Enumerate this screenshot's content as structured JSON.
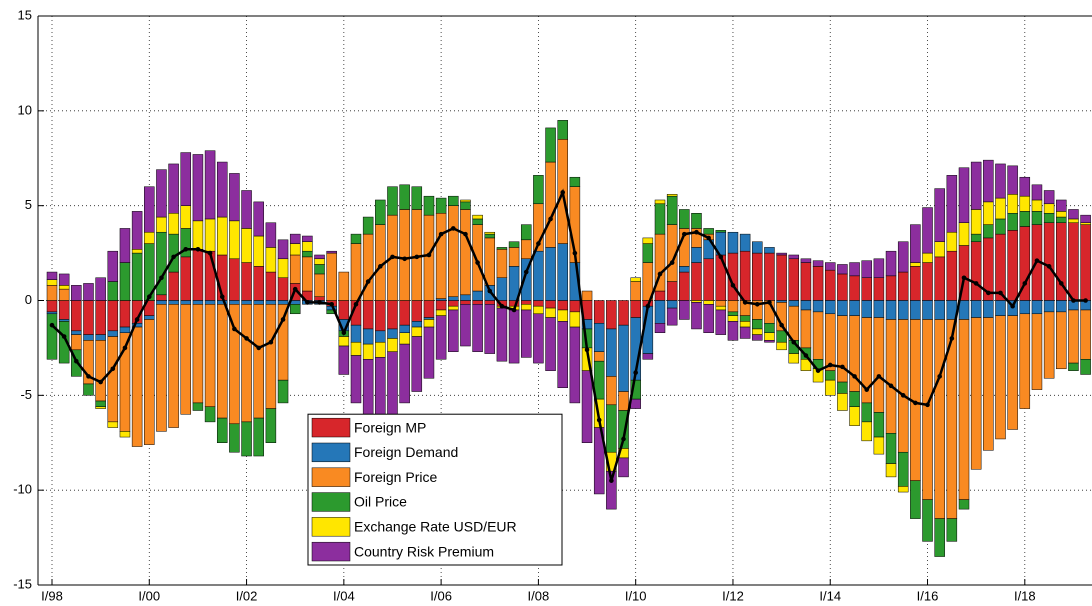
{
  "chart_data": {
    "type": "bar",
    "stacked": true,
    "categories": [
      "I/98",
      null,
      null,
      null,
      null,
      null,
      null,
      null,
      "I/00",
      null,
      null,
      null,
      null,
      null,
      null,
      null,
      "I/02",
      null,
      null,
      null,
      null,
      null,
      null,
      null,
      "I/04",
      null,
      null,
      null,
      null,
      null,
      null,
      null,
      "I/06",
      null,
      null,
      null,
      null,
      null,
      null,
      null,
      "I/08",
      null,
      null,
      null,
      null,
      null,
      null,
      null,
      "I/10",
      null,
      null,
      null,
      null,
      null,
      null,
      null,
      "I/12",
      null,
      null,
      null,
      null,
      null,
      null,
      null,
      "I/14",
      null,
      null,
      null,
      null,
      null,
      null,
      null,
      "I/16",
      null,
      null,
      null,
      null,
      null,
      null,
      null,
      "I/18",
      null,
      null,
      null,
      null,
      null
    ],
    "series": [
      {
        "name": "Foreign MP",
        "color": "#d7262b",
        "values": [
          -0.6,
          -1.0,
          -1.6,
          -1.8,
          -1.8,
          -1.6,
          -1.4,
          -1.2,
          -0.8,
          0.3,
          1.5,
          2.3,
          2.7,
          2.6,
          2.4,
          2.2,
          2.0,
          1.8,
          1.5,
          1.2,
          0.9,
          0.5,
          0.2,
          -0.3,
          -1.0,
          -1.3,
          -1.5,
          -1.6,
          -1.5,
          -1.3,
          -1.1,
          -0.9,
          -0.5,
          -0.3,
          -0.2,
          -0.2,
          -0.2,
          -0.3,
          -0.3,
          -0.2,
          -0.3,
          -0.4,
          -0.5,
          -0.6,
          -1.0,
          -1.2,
          -1.5,
          -1.3,
          -0.9,
          -0.3,
          0.5,
          1.0,
          1.5,
          2.0,
          2.2,
          2.4,
          2.5,
          2.6,
          2.5,
          2.5,
          2.4,
          2.2,
          2.0,
          1.8,
          1.6,
          1.4,
          1.3,
          1.2,
          1.2,
          1.3,
          1.5,
          1.8,
          2.0,
          2.3,
          2.6,
          2.9,
          3.1,
          3.3,
          3.5,
          3.7,
          3.9,
          4.0,
          4.1,
          4.1,
          4.1,
          4.0
        ]
      },
      {
        "name": "Foreign Demand",
        "color": "#2577b8",
        "values": [
          -0.1,
          -0.1,
          -0.2,
          -0.3,
          -0.3,
          -0.3,
          -0.3,
          -0.2,
          -0.2,
          -0.2,
          -0.2,
          -0.2,
          -0.2,
          -0.2,
          -0.2,
          -0.2,
          -0.2,
          -0.2,
          -0.2,
          -0.2,
          -0.2,
          -0.2,
          -0.2,
          -0.2,
          -0.6,
          -0.9,
          -0.8,
          -0.6,
          -0.5,
          -0.4,
          -0.3,
          -0.1,
          0.1,
          0.2,
          0.3,
          0.5,
          0.8,
          1.2,
          1.8,
          2.2,
          2.6,
          2.8,
          3.0,
          2.0,
          -0.5,
          -1.5,
          -2.5,
          -3.5,
          -3.3,
          -2.5,
          -1.2,
          -0.4,
          0.3,
          0.8,
          1.0,
          1.2,
          1.1,
          0.9,
          0.6,
          0.3,
          -0.1,
          -0.3,
          -0.5,
          -0.6,
          -0.7,
          -0.8,
          -0.8,
          -0.9,
          -0.9,
          -1.0,
          -1.0,
          -1.0,
          -1.0,
          -1.0,
          -1.0,
          -1.0,
          -0.9,
          -0.9,
          -0.8,
          -0.8,
          -0.7,
          -0.7,
          -0.6,
          -0.6,
          -0.5,
          -0.5
        ]
      },
      {
        "name": "Foreign Price",
        "color": "#f98a22",
        "values": [
          0.8,
          0.6,
          -0.8,
          -2.3,
          -3.2,
          -4.5,
          -5.2,
          -6.3,
          -6.6,
          -6.7,
          -6.5,
          -5.8,
          -5.2,
          -5.4,
          -6.0,
          -6.3,
          -6.2,
          -6.0,
          -5.5,
          -4.0,
          1.5,
          1.8,
          1.2,
          2.5,
          1.5,
          3.0,
          3.5,
          4.0,
          4.5,
          4.8,
          4.8,
          4.5,
          4.5,
          4.8,
          4.5,
          3.5,
          2.5,
          1.5,
          1.0,
          1.0,
          2.5,
          4.5,
          5.5,
          4.0,
          0.5,
          -0.5,
          -1.5,
          -1.0,
          1.0,
          2.0,
          3.0,
          3.0,
          2.0,
          1.0,
          0.3,
          -0.3,
          -0.6,
          -0.8,
          -1.0,
          -1.2,
          -1.5,
          -1.8,
          -2.0,
          -2.5,
          -3.0,
          -3.5,
          -4.0,
          -4.5,
          -5.0,
          -6.0,
          -7.0,
          -8.5,
          -9.5,
          -10.5,
          -10.5,
          -9.5,
          -8.0,
          -7.0,
          -6.5,
          -6.0,
          -5.0,
          -4.0,
          -3.5,
          -3.0,
          -2.8,
          -2.6
        ]
      },
      {
        "name": "Oil Price",
        "color": "#2c9a2e",
        "values": [
          -2.4,
          -2.2,
          -1.4,
          -0.6,
          -0.3,
          1.0,
          2.0,
          2.5,
          3.0,
          3.3,
          2.0,
          1.5,
          -0.4,
          -0.8,
          -1.3,
          -1.5,
          -1.8,
          -2.0,
          -1.8,
          -1.2,
          -0.5,
          0.3,
          0.5,
          -0.2,
          -0.3,
          0.5,
          0.9,
          1.3,
          1.5,
          1.3,
          1.2,
          1.0,
          0.8,
          0.5,
          0.4,
          0.3,
          0.2,
          0.1,
          0.3,
          0.8,
          1.5,
          1.8,
          1.0,
          0.5,
          -1.0,
          -2.0,
          -2.5,
          -2.0,
          -1.0,
          1.0,
          1.6,
          1.5,
          1.0,
          0.8,
          0.3,
          0.1,
          -0.2,
          -0.3,
          -0.5,
          -0.5,
          -0.6,
          -0.7,
          -0.6,
          -0.5,
          -0.5,
          -0.6,
          -0.8,
          -1.0,
          -1.3,
          -1.6,
          -1.8,
          -2.0,
          -2.2,
          -2.0,
          -1.2,
          -0.5,
          0.4,
          0.7,
          0.8,
          0.9,
          0.8,
          0.7,
          0.5,
          0.3,
          -0.4,
          -0.8
        ]
      },
      {
        "name": "Exchange Rate USD/EUR",
        "color": "#ffe600",
        "values": [
          0.3,
          0.2,
          0,
          0,
          -0.1,
          -0.3,
          -0.3,
          0.2,
          0.6,
          0.8,
          1.1,
          1.2,
          1.5,
          1.7,
          2.0,
          2.0,
          1.8,
          1.6,
          1.3,
          1.0,
          0.6,
          0.5,
          0.3,
          0.0,
          -0.5,
          -0.7,
          -0.8,
          -0.8,
          -0.7,
          -0.6,
          -0.5,
          -0.4,
          -0.3,
          -0.2,
          0.1,
          0.2,
          0.1,
          -0.1,
          -0.2,
          -0.3,
          -0.4,
          -0.5,
          -0.6,
          -0.8,
          -1.2,
          -1.5,
          -1.0,
          -0.5,
          0.2,
          0.3,
          0.2,
          0.1,
          0,
          -0.1,
          -0.2,
          -0.2,
          -0.3,
          -0.3,
          -0.3,
          -0.4,
          -0.4,
          -0.5,
          -0.6,
          -0.7,
          -0.8,
          -0.9,
          -1.0,
          -1.0,
          -0.9,
          -0.7,
          -0.3,
          0.2,
          0.5,
          0.8,
          1.0,
          1.2,
          1.3,
          1.2,
          1.1,
          1.0,
          0.8,
          0.6,
          0.5,
          0.3,
          0.2,
          0.1
        ]
      },
      {
        "name": "Country Risk Premium",
        "color": "#8c2e9e",
        "values": [
          0.4,
          0.6,
          0.8,
          0.9,
          1.2,
          1.6,
          1.8,
          2.0,
          2.4,
          2.5,
          2.6,
          2.8,
          3.5,
          3.6,
          2.9,
          2.5,
          2.0,
          1.8,
          1.3,
          1.0,
          0.5,
          0.3,
          0.2,
          0.1,
          -1.5,
          -2.5,
          -3.0,
          -3.2,
          -3.3,
          -3.1,
          -2.9,
          -2.7,
          -2.3,
          -2.2,
          -2.2,
          -2.5,
          -2.6,
          -2.8,
          -2.8,
          -2.5,
          -2.6,
          -2.8,
          -3.5,
          -4.0,
          -3.8,
          -3.5,
          -2.0,
          -1.0,
          -0.5,
          -0.3,
          -0.5,
          -0.9,
          -1.0,
          -1.4,
          -1.5,
          -1.3,
          -1.0,
          -0.6,
          -0.3,
          -0.1,
          0.1,
          0.2,
          0.2,
          0.3,
          0.4,
          0.5,
          0.7,
          0.9,
          1.0,
          1.3,
          1.6,
          2.0,
          2.4,
          2.8,
          3.0,
          2.9,
          2.5,
          2.2,
          1.8,
          1.5,
          1.0,
          0.8,
          0.7,
          0.6,
          0.5,
          0.4
        ]
      }
    ],
    "line": {
      "color": "#000000",
      "values": [
        -1.3,
        -1.9,
        -3.2,
        -4.0,
        -4.3,
        -3.6,
        -2.5,
        -1.0,
        0.2,
        1.2,
        2.3,
        2.7,
        2.7,
        2.5,
        0.2,
        -1.5,
        -2.0,
        -2.5,
        -2.2,
        -1.0,
        0.6,
        -0.1,
        -0.1,
        -0.2,
        -1.7,
        -0.2,
        1.0,
        1.8,
        2.3,
        2.2,
        2.3,
        2.4,
        3.5,
        3.8,
        3.5,
        2.0,
        0.5,
        -0.3,
        -0.5,
        1.5,
        3.0,
        4.3,
        5.7,
        2.5,
        -2.6,
        -6.3,
        -9.5,
        -7.3,
        -3.8,
        -0.3,
        1.4,
        2.0,
        3.5,
        3.6,
        3.3,
        2.3,
        0.8,
        -0.1,
        -0.2,
        -0.1,
        -1.3,
        -2.2,
        -2.9,
        -3.7,
        -3.4,
        -3.5,
        -4.0,
        -4.7,
        -4.0,
        -4.5,
        -5.0,
        -5.4,
        -5.5,
        -4.0,
        -2.0,
        1.2,
        0.9,
        0.4,
        0.4,
        -0.3,
        0.9,
        2.1,
        1.8,
        0.9,
        0.0,
        0.0
      ]
    },
    "ylim": [
      -15,
      15
    ],
    "yticks": [
      -15,
      -10,
      -5,
      0,
      5,
      10,
      15
    ],
    "grid": true,
    "legend": "lower center"
  }
}
